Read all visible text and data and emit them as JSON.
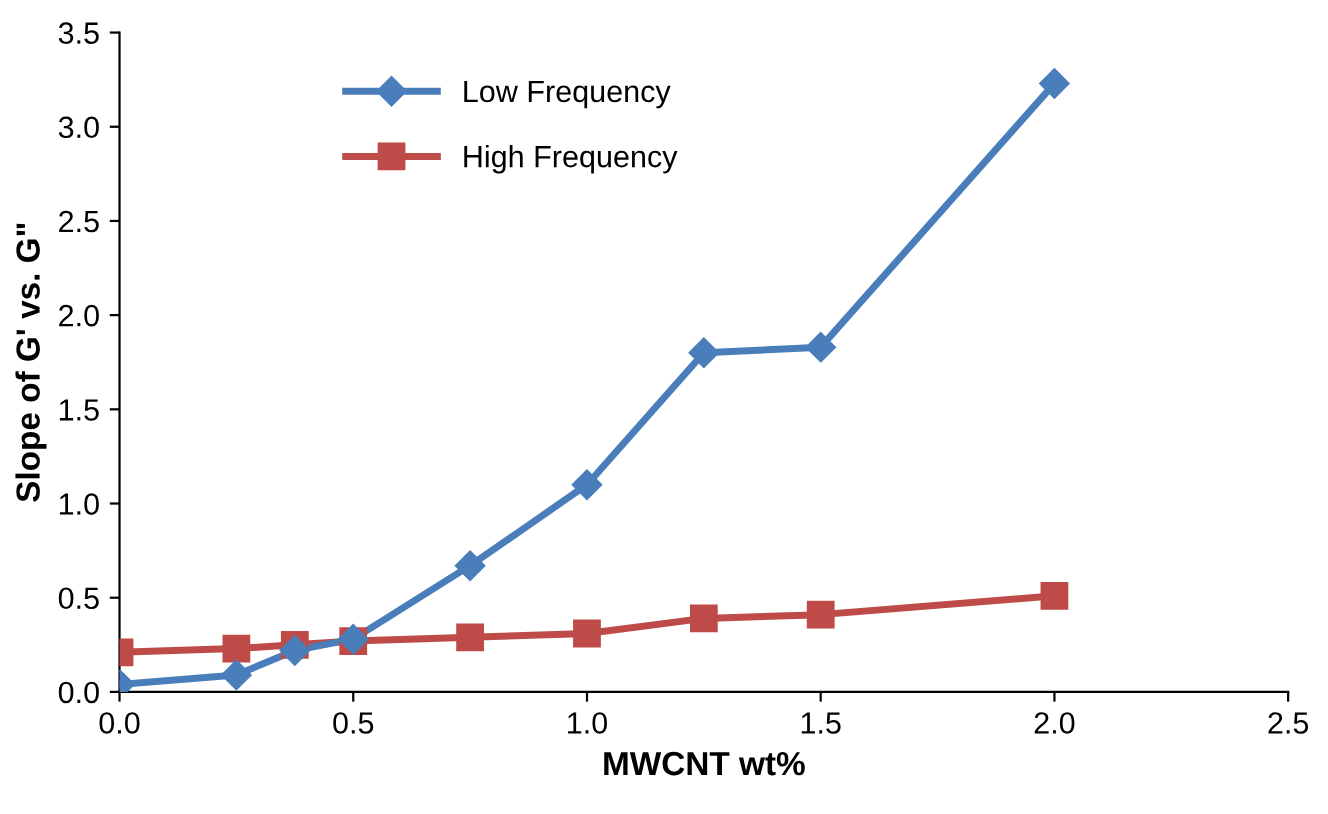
{
  "chart_data": {
    "type": "line",
    "xlabel": "MWCNT wt%",
    "ylabel": "Slope of G' vs. G\"",
    "x": [
      0,
      0.25,
      0.375,
      0.5,
      0.75,
      1.0,
      1.25,
      1.5,
      2.0
    ],
    "series": [
      {
        "name": "Low Frequency",
        "color": "#4a7ebb",
        "marker": "diamond",
        "values": [
          0.04,
          0.09,
          0.22,
          0.28,
          0.67,
          1.1,
          1.8,
          1.83,
          3.23
        ]
      },
      {
        "name": "High Frequency",
        "color": "#be4b48",
        "marker": "square",
        "values": [
          0.21,
          0.23,
          0.25,
          0.27,
          0.29,
          0.31,
          0.39,
          0.41,
          0.51
        ]
      }
    ],
    "xlim": [
      0,
      2.5
    ],
    "xticks": [
      {
        "value": 0,
        "label": "0.0"
      },
      0.5,
      {
        "value": 1,
        "label": "1.0"
      },
      1.5,
      {
        "value": 2,
        "label": "2.0"
      },
      2.5
    ],
    "ylim": [
      0,
      3.5
    ],
    "yticks": [
      {
        "value": 0,
        "label": "0.0"
      },
      0.5,
      {
        "value": 1,
        "label": "1.0"
      },
      1.5,
      {
        "value": 2,
        "label": "2.0"
      },
      2.5,
      {
        "value": 3,
        "label": "3.0"
      },
      3.5
    ],
    "legend": "top left",
    "grid": false,
    "line_style": "solid"
  }
}
